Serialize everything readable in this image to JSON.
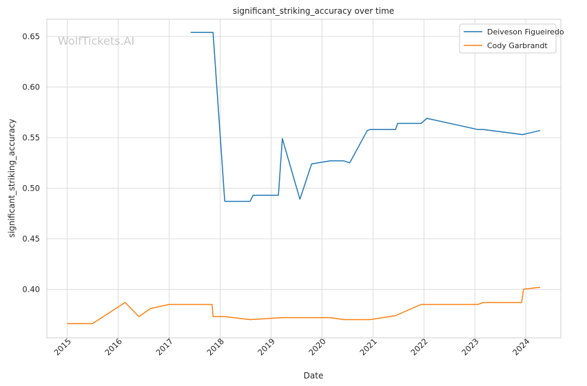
{
  "chart_data": {
    "type": "line",
    "title": "significant_striking_accuracy over time",
    "xlabel": "Date",
    "ylabel": "significant_striking_accuracy",
    "watermark": "WolfTickets.AI",
    "xlim": [
      "2014-08-08",
      "2024-09-08"
    ],
    "ylim": [
      0.352,
      0.667
    ],
    "x_ticks": [
      "2015-01-01",
      "2016-01-01",
      "2017-01-01",
      "2018-01-01",
      "2019-01-01",
      "2020-01-01",
      "2021-01-01",
      "2022-01-01",
      "2023-01-01",
      "2024-01-01"
    ],
    "x_tick_labels": [
      "2015",
      "2016",
      "2017",
      "2018",
      "2019",
      "2020",
      "2021",
      "2022",
      "2023",
      "2024"
    ],
    "y_ticks": [
      0.4,
      0.45,
      0.5,
      0.55,
      0.6,
      0.65
    ],
    "y_tick_labels": [
      "0.40",
      "0.45",
      "0.50",
      "0.55",
      "0.60",
      "0.65"
    ],
    "grid": true,
    "legend_position": "top-right",
    "series": [
      {
        "name": "Deiveson Figueiredo",
        "color": "#1f77b4",
        "points": [
          [
            "2017-06-03",
            0.654
          ],
          [
            "2017-11-11",
            0.654
          ],
          [
            "2018-02-03",
            0.487
          ],
          [
            "2018-08-04",
            0.487
          ],
          [
            "2018-08-25",
            0.493
          ],
          [
            "2019-02-23",
            0.493
          ],
          [
            "2019-03-23",
            0.549
          ],
          [
            "2019-07-27",
            0.489
          ],
          [
            "2019-10-19",
            0.524
          ],
          [
            "2020-02-29",
            0.527
          ],
          [
            "2020-06-06",
            0.527
          ],
          [
            "2020-07-18",
            0.525
          ],
          [
            "2020-11-21",
            0.557
          ],
          [
            "2020-12-12",
            0.558
          ],
          [
            "2021-06-12",
            0.558
          ],
          [
            "2021-06-26",
            0.564
          ],
          [
            "2021-12-11",
            0.564
          ],
          [
            "2022-01-22",
            0.569
          ],
          [
            "2023-01-21",
            0.558
          ],
          [
            "2023-03-04",
            0.558
          ],
          [
            "2023-12-09",
            0.553
          ],
          [
            "2024-04-13",
            0.557
          ]
        ]
      },
      {
        "name": "Cody Garbrandt",
        "color": "#ff7f0e",
        "points": [
          [
            "2015-01-01",
            0.366
          ],
          [
            "2015-07-01",
            0.366
          ],
          [
            "2016-02-20",
            0.387
          ],
          [
            "2016-05-29",
            0.373
          ],
          [
            "2016-08-20",
            0.381
          ],
          [
            "2016-12-30",
            0.385
          ],
          [
            "2017-11-04",
            0.385
          ],
          [
            "2017-11-11",
            0.373
          ],
          [
            "2018-02-03",
            0.373
          ],
          [
            "2018-08-04",
            0.37
          ],
          [
            "2019-03-23",
            0.372
          ],
          [
            "2020-02-29",
            0.372
          ],
          [
            "2020-06-06",
            0.37
          ],
          [
            "2020-12-12",
            0.37
          ],
          [
            "2021-06-12",
            0.374
          ],
          [
            "2021-12-11",
            0.385
          ],
          [
            "2023-01-21",
            0.385
          ],
          [
            "2023-03-04",
            0.387
          ],
          [
            "2023-12-02",
            0.387
          ],
          [
            "2023-12-16",
            0.4
          ],
          [
            "2024-04-13",
            0.402
          ]
        ]
      }
    ]
  }
}
